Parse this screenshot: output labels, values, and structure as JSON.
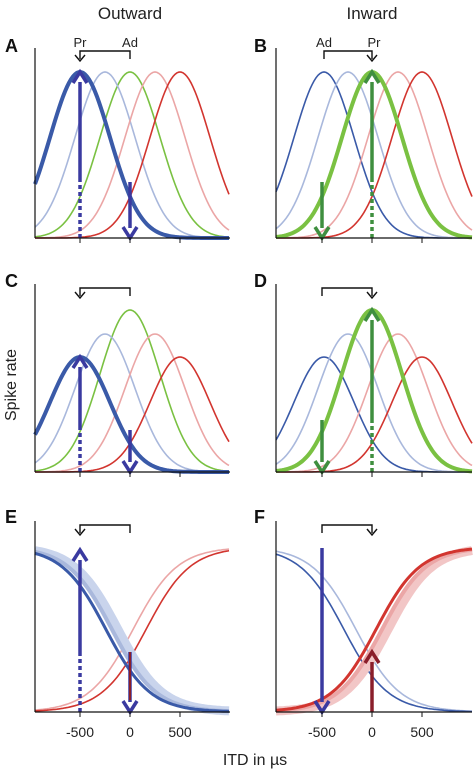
{
  "figure": {
    "column_titles": [
      "Outward",
      "Inward"
    ],
    "y_axis_label": "Spike rate",
    "x_axis_label": "ITD in µs",
    "x_ticks": [
      "-500",
      "0",
      "500"
    ]
  },
  "colors": {
    "dark_blue": "#3a5aa8",
    "light_blue": "#a9b8dc",
    "green": "#7ac142",
    "pink": "#eba6a6",
    "red": "#d2352f",
    "arrow_blue": "#3a3aa0",
    "arrow_green": "#3f8f3f",
    "arrow_red": "#8a1e2a"
  },
  "panels": [
    {
      "letter": "A",
      "labels": [
        "Pr",
        "Ad"
      ]
    },
    {
      "letter": "B",
      "labels": [
        "Ad",
        "Pr"
      ]
    },
    {
      "letter": "C",
      "labels": []
    },
    {
      "letter": "D",
      "labels": []
    },
    {
      "letter": "E",
      "labels": []
    },
    {
      "letter": "F",
      "labels": []
    }
  ]
}
